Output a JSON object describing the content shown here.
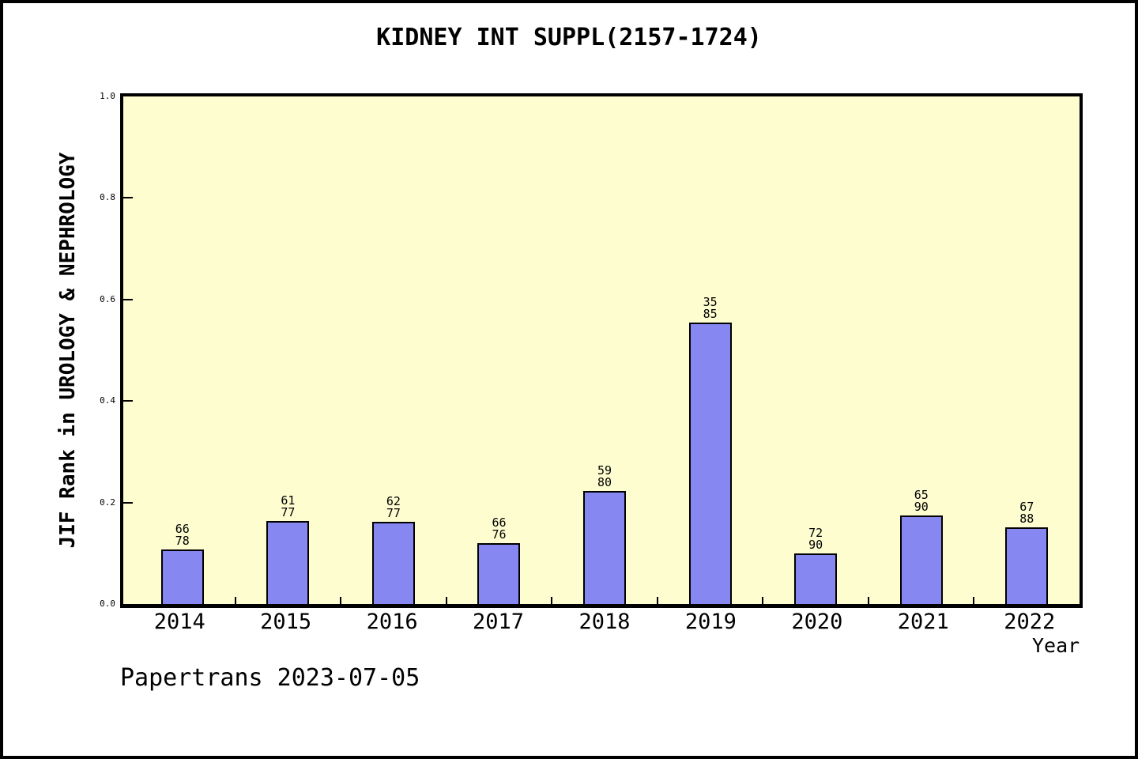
{
  "page": {
    "title": "KIDNEY INT SUPPL(2157-1724)",
    "footer": "Papertrans 2023-07-05"
  },
  "chart_data": {
    "type": "bar",
    "title": "KIDNEY INT SUPPL(2157-1724)",
    "xlabel": "Year",
    "ylabel": "JIF Rank in UROLOGY & NEPHROLOGY",
    "ylim": [
      0.0,
      1.0
    ],
    "ytick_labels": [
      "0.0",
      "0.2",
      "0.4",
      "0.6",
      "0.8",
      "1.0"
    ],
    "ytick_values": [
      0.0,
      0.2,
      0.4,
      0.6,
      0.8,
      1.0
    ],
    "grid": false,
    "legend": "none",
    "categories": [
      "2014",
      "2015",
      "2016",
      "2017",
      "2018",
      "2019",
      "2020",
      "2021",
      "2022"
    ],
    "values": [
      0.108,
      0.163,
      0.162,
      0.12,
      0.223,
      0.554,
      0.099,
      0.175,
      0.151
    ],
    "bar_labels": [
      {
        "rank": "66",
        "total": "78"
      },
      {
        "rank": "61",
        "total": "77"
      },
      {
        "rank": "62",
        "total": "77"
      },
      {
        "rank": "66",
        "total": "76"
      },
      {
        "rank": "59",
        "total": "80"
      },
      {
        "rank": "35",
        "total": "85"
      },
      {
        "rank": "72",
        "total": "90"
      },
      {
        "rank": "65",
        "total": "90"
      },
      {
        "rank": "67",
        "total": "88"
      }
    ],
    "colors": {
      "bar_fill": "#8787f2",
      "bar_border": "#000000",
      "plot_background": "#fdfdd0",
      "page_background": "#ffffff",
      "axis": "#000000"
    }
  }
}
